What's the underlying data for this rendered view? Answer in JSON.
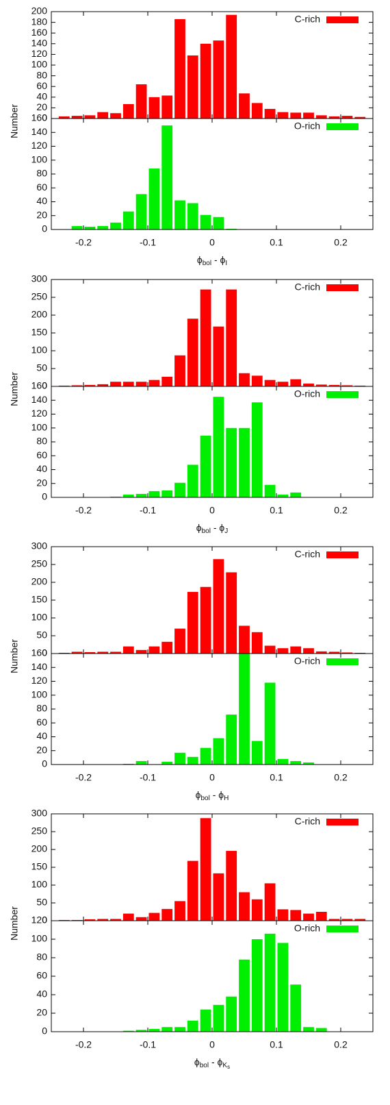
{
  "chart_data": [
    {
      "type": "histogram",
      "ylabel": "Number",
      "xlim": [
        -0.25,
        0.25
      ],
      "xticks": [
        -0.2,
        -0.1,
        0,
        0.1,
        0.2
      ],
      "ylim": [
        0,
        200
      ],
      "yticks": [
        0,
        20,
        40,
        60,
        80,
        100,
        120,
        140,
        160,
        180,
        200
      ],
      "bins": [
        -0.24,
        -0.22,
        -0.2,
        -0.18,
        -0.16,
        -0.14,
        -0.12,
        -0.1,
        -0.08,
        -0.06,
        -0.04,
        -0.02,
        0,
        0.02,
        0.04,
        0.06,
        0.08,
        0.1,
        0.12,
        0.14,
        0.16,
        0.18,
        0.2,
        0.22,
        0.24
      ],
      "series": [
        {
          "name": "C-rich",
          "color": "#ff0000",
          "values": [
            4,
            5,
            6,
            12,
            10,
            27,
            64,
            40,
            43,
            186,
            118,
            140,
            146,
            194,
            47,
            29,
            18,
            12,
            11,
            11,
            6,
            4,
            5,
            3
          ]
        }
      ]
    },
    {
      "type": "histogram",
      "xlabel": [
        "ϕ",
        "bol",
        " - ϕ",
        "I"
      ],
      "xlim": [
        -0.25,
        0.25
      ],
      "xticks": [
        -0.2,
        -0.1,
        0,
        0.1,
        0.2
      ],
      "ylim": [
        0,
        160
      ],
      "yticks": [
        0,
        20,
        40,
        60,
        80,
        100,
        120,
        140,
        160
      ],
      "bins": [
        -0.24,
        -0.22,
        -0.2,
        -0.18,
        -0.16,
        -0.14,
        -0.12,
        -0.1,
        -0.08,
        -0.06,
        -0.04,
        -0.02,
        0,
        0.02,
        0.04,
        0.06,
        0.08,
        0.1,
        0.12,
        0.14,
        0.16,
        0.18,
        0.2,
        0.22,
        0.24
      ],
      "series": [
        {
          "name": "O-rich",
          "color": "#00ee00",
          "values": [
            0,
            5,
            4,
            5,
            10,
            26,
            51,
            88,
            150,
            42,
            38,
            21,
            18,
            1,
            0,
            0,
            0,
            0,
            0,
            0,
            0,
            0,
            0,
            0
          ]
        }
      ]
    },
    {
      "type": "histogram",
      "ylabel": "Number",
      "xlim": [
        -0.25,
        0.25
      ],
      "xticks": [
        -0.2,
        -0.1,
        0,
        0.1,
        0.2
      ],
      "ylim": [
        0,
        300
      ],
      "yticks": [
        0,
        50,
        100,
        150,
        200,
        250,
        300
      ],
      "bins": [
        -0.24,
        -0.22,
        -0.2,
        -0.18,
        -0.16,
        -0.14,
        -0.12,
        -0.1,
        -0.08,
        -0.06,
        -0.04,
        -0.02,
        0,
        0.02,
        0.04,
        0.06,
        0.08,
        0.1,
        0.12,
        0.14,
        0.16,
        0.18,
        0.2,
        0.22,
        0.24
      ],
      "series": [
        {
          "name": "C-rich",
          "color": "#ff0000",
          "values": [
            2,
            3,
            4,
            6,
            13,
            13,
            13,
            18,
            27,
            87,
            190,
            272,
            168,
            272,
            37,
            30,
            18,
            13,
            20,
            8,
            5,
            4,
            3,
            2
          ]
        }
      ]
    },
    {
      "type": "histogram",
      "xlabel": [
        "ϕ",
        "bol",
        " - ϕ",
        "J"
      ],
      "xlim": [
        -0.25,
        0.25
      ],
      "xticks": [
        -0.2,
        -0.1,
        0,
        0.1,
        0.2
      ],
      "ylim": [
        0,
        160
      ],
      "yticks": [
        0,
        20,
        40,
        60,
        80,
        100,
        120,
        140,
        160
      ],
      "bins": [
        -0.24,
        -0.22,
        -0.2,
        -0.18,
        -0.16,
        -0.14,
        -0.12,
        -0.1,
        -0.08,
        -0.06,
        -0.04,
        -0.02,
        0,
        0.02,
        0.04,
        0.06,
        0.08,
        0.1,
        0.12,
        0.14,
        0.16,
        0.18,
        0.2,
        0.22,
        0.24
      ],
      "series": [
        {
          "name": "O-rich",
          "color": "#00ee00",
          "values": [
            0,
            0,
            0,
            0,
            1,
            4,
            5,
            9,
            10,
            21,
            47,
            89,
            145,
            100,
            100,
            137,
            18,
            4,
            7,
            0,
            0,
            0,
            0,
            0
          ]
        }
      ]
    },
    {
      "type": "histogram",
      "ylabel": "Number",
      "xlim": [
        -0.25,
        0.25
      ],
      "xticks": [
        -0.2,
        -0.1,
        0,
        0.1,
        0.2
      ],
      "ylim": [
        0,
        300
      ],
      "yticks": [
        0,
        50,
        100,
        150,
        200,
        250,
        300
      ],
      "bins": [
        -0.24,
        -0.22,
        -0.2,
        -0.18,
        -0.16,
        -0.14,
        -0.12,
        -0.1,
        -0.08,
        -0.06,
        -0.04,
        -0.02,
        0,
        0.02,
        0.04,
        0.06,
        0.08,
        0.1,
        0.12,
        0.14,
        0.16,
        0.18,
        0.2,
        0.22,
        0.24
      ],
      "series": [
        {
          "name": "C-rich",
          "color": "#ff0000",
          "values": [
            2,
            5,
            4,
            5,
            5,
            20,
            10,
            20,
            33,
            70,
            173,
            187,
            265,
            228,
            78,
            60,
            22,
            15,
            20,
            15,
            6,
            5,
            3,
            2
          ]
        }
      ]
    },
    {
      "type": "histogram",
      "xlabel": [
        "ϕ",
        "bol",
        " - ϕ",
        "H"
      ],
      "xlim": [
        -0.25,
        0.25
      ],
      "xticks": [
        -0.2,
        -0.1,
        0,
        0.1,
        0.2
      ],
      "ylim": [
        0,
        160
      ],
      "yticks": [
        0,
        20,
        40,
        60,
        80,
        100,
        120,
        140,
        160
      ],
      "bins": [
        -0.24,
        -0.22,
        -0.2,
        -0.18,
        -0.16,
        -0.14,
        -0.12,
        -0.1,
        -0.08,
        -0.06,
        -0.04,
        -0.02,
        0,
        0.02,
        0.04,
        0.06,
        0.08,
        0.1,
        0.12,
        0.14,
        0.16,
        0.18,
        0.2,
        0.22,
        0.24
      ],
      "series": [
        {
          "name": "O-rich",
          "color": "#00ee00",
          "values": [
            0,
            0,
            0,
            0,
            0,
            1,
            5,
            0,
            4,
            17,
            11,
            24,
            38,
            72,
            160,
            34,
            118,
            8,
            5,
            3,
            0,
            0,
            0,
            0
          ]
        }
      ]
    },
    {
      "type": "histogram",
      "ylabel": "Number",
      "xlim": [
        -0.25,
        0.25
      ],
      "xticks": [
        -0.2,
        -0.1,
        0,
        0.1,
        0.2
      ],
      "ylim": [
        0,
        300
      ],
      "yticks": [
        0,
        50,
        100,
        150,
        200,
        250,
        300
      ],
      "bins": [
        -0.24,
        -0.22,
        -0.2,
        -0.18,
        -0.16,
        -0.14,
        -0.12,
        -0.1,
        -0.08,
        -0.06,
        -0.04,
        -0.02,
        0,
        0.02,
        0.04,
        0.06,
        0.08,
        0.1,
        0.12,
        0.14,
        0.16,
        0.18,
        0.2,
        0.22,
        0.24
      ],
      "series": [
        {
          "name": "C-rich",
          "color": "#ff0000",
          "values": [
            2,
            2,
            4,
            5,
            5,
            20,
            10,
            22,
            33,
            55,
            168,
            288,
            133,
            196,
            80,
            60,
            105,
            32,
            30,
            20,
            25,
            5,
            5,
            5
          ]
        }
      ]
    },
    {
      "type": "histogram",
      "xlabel": [
        "ϕ",
        "bol",
        " - ϕ",
        "K",
        "s"
      ],
      "xlim": [
        -0.25,
        0.25
      ],
      "xticks": [
        -0.2,
        -0.1,
        0,
        0.1,
        0.2
      ],
      "ylim": [
        0,
        120
      ],
      "yticks": [
        0,
        20,
        40,
        60,
        80,
        100,
        120
      ],
      "bins": [
        -0.24,
        -0.22,
        -0.2,
        -0.18,
        -0.16,
        -0.14,
        -0.12,
        -0.1,
        -0.08,
        -0.06,
        -0.04,
        -0.02,
        0,
        0.02,
        0.04,
        0.06,
        0.08,
        0.1,
        0.12,
        0.14,
        0.16,
        0.18,
        0.2,
        0.22,
        0.24
      ],
      "series": [
        {
          "name": "O-rich",
          "color": "#00ee00",
          "values": [
            0,
            0,
            0,
            0,
            0,
            1,
            2,
            3,
            5,
            5,
            12,
            24,
            29,
            38,
            78,
            100,
            106,
            96,
            51,
            5,
            4,
            0,
            0,
            0
          ]
        }
      ]
    }
  ]
}
